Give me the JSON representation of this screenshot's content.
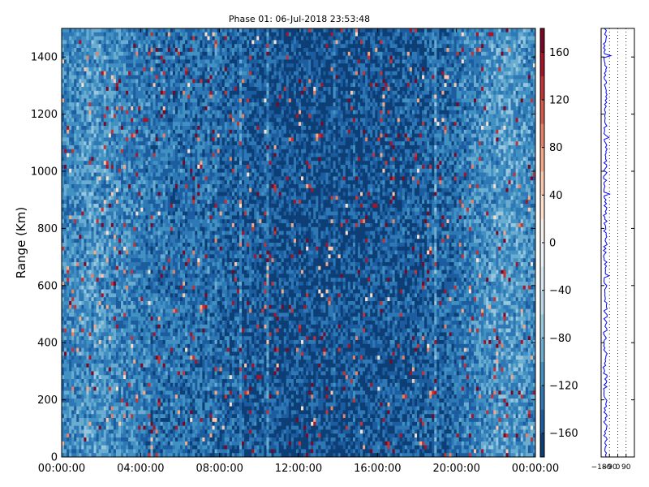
{
  "chart_data": [
    {
      "type": "heatmap",
      "title": "Phase 01: 06-Jul-2018 23:53:48",
      "ylabel": "Range (Km)",
      "xlabel": "",
      "x_ticks": [
        "00:00:00",
        "04:00:00",
        "08:00:00",
        "12:00:00",
        "16:00:00",
        "20:00:00",
        "00:00:00"
      ],
      "x_range_hours": [
        0,
        24
      ],
      "y_ticks": [
        0,
        200,
        400,
        600,
        800,
        1000,
        1200,
        1400
      ],
      "ylim": [
        0,
        1500
      ],
      "colorbar": {
        "ticks": [
          "−160",
          "−120",
          "−80",
          "−40",
          "0",
          "40",
          "80",
          "120",
          "160"
        ],
        "tick_values": [
          -160,
          -120,
          -80,
          -40,
          0,
          40,
          80,
          120,
          160
        ],
        "range": [
          -180,
          180
        ],
        "colormap": "RdBu_r",
        "levels": 18
      },
      "colors": {
        "low": "#053061",
        "mid": "#f7f7f7",
        "high": "#67001f"
      },
      "description_of_values": "phase in degrees; field dominated by -180 to -60 values with scattered positive outliers"
    },
    {
      "type": "line",
      "x_ticks": [
        "−180",
        "−90",
        "0",
        "90"
      ],
      "xlim": [
        -180,
        180
      ],
      "ylim": [
        0,
        1500
      ],
      "grid": "x-dotted",
      "line_color": "#0000ff",
      "profile_center": -135
    }
  ]
}
